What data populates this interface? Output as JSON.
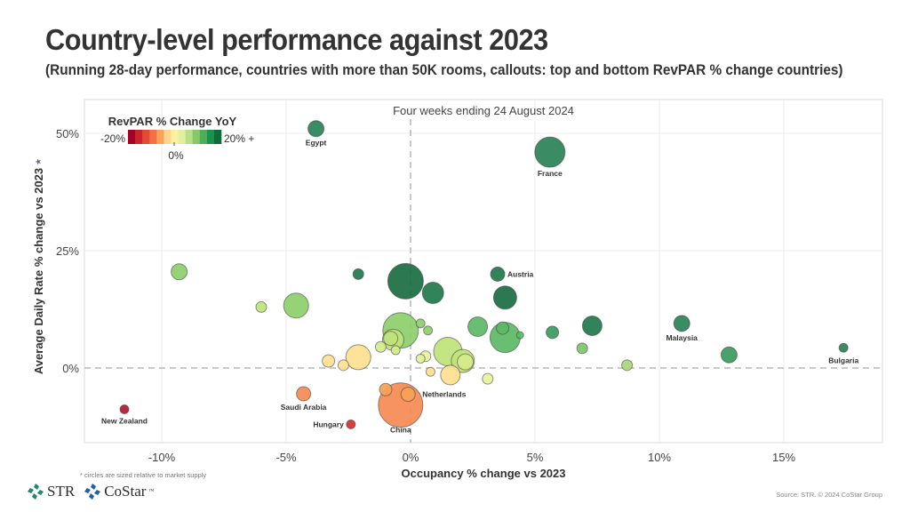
{
  "header": {
    "title": "Country-level performance against 2023",
    "subtitle": "(Running 28-day performance, countries with more than 50K rooms, callouts: top and bottom RevPAR % change countries)"
  },
  "footer": {
    "footnote": "* circles are sized relative to market supply",
    "source": "Source: STR. © 2024 CoStar Group",
    "logos": [
      {
        "name": "STR",
        "color": "#1f8a6e"
      },
      {
        "name": "CoStar",
        "color": "#1f5fa8"
      }
    ]
  },
  "chart_data": {
    "type": "scatter",
    "title": "Four weeks ending 24 August 2024",
    "xlabel": "Occupancy % change vs 2023",
    "ylabel": "Average Daily Rate % change vs 2023",
    "ylabel_marker": "★",
    "xlim": [
      -13.5,
      18.6
    ],
    "ylim": [
      -16,
      57
    ],
    "x_ticks": [
      {
        "value": -10,
        "label": "-10%"
      },
      {
        "value": -5,
        "label": "-5%"
      },
      {
        "value": 0,
        "label": "0%"
      },
      {
        "value": 5,
        "label": "5%"
      },
      {
        "value": 10,
        "label": "10%"
      },
      {
        "value": 15,
        "label": "15%"
      }
    ],
    "y_ticks": [
      {
        "value": 0,
        "label": "0%"
      },
      {
        "value": 25,
        "label": "25%"
      },
      {
        "value": 50,
        "label": "50%"
      }
    ],
    "grid": true,
    "reference_lines": {
      "x": 0,
      "y": 0,
      "style": "dashed"
    },
    "size_encoding": "market supply (relative)",
    "color_encoding": {
      "title": "RevPAR % Change YoY",
      "min_label": "-20%",
      "mid_label": "0%",
      "max_label": "20% +",
      "range": [
        -20,
        20
      ],
      "legend_position": "top-left",
      "colors": [
        "#a50026",
        "#c9232b",
        "#e34a33",
        "#f46d43",
        "#f9a35c",
        "#fdd590",
        "#fef0a0",
        "#e0f0a0",
        "#b7df8a",
        "#86c86a",
        "#4fae5e",
        "#1d9150",
        "#0f6b38"
      ]
    },
    "points": [
      {
        "label": "Egypt",
        "x": -3.8,
        "y": 51.0,
        "size": 9,
        "color": "#2a8257"
      },
      {
        "label": "France",
        "x": 5.6,
        "y": 46.0,
        "size": 17,
        "color": "#2a8257"
      },
      {
        "label": "Austria",
        "x": 3.5,
        "y": 20.0,
        "size": 8,
        "color": "#1f7a4b"
      },
      {
        "label": "",
        "x": -9.3,
        "y": 20.5,
        "size": 9,
        "color": "#8ccf6a"
      },
      {
        "label": "",
        "x": -2.1,
        "y": 20.0,
        "size": 6,
        "color": "#1f7a4b"
      },
      {
        "label": "",
        "x": -0.2,
        "y": 18.5,
        "size": 20,
        "color": "#1a6e42"
      },
      {
        "label": "",
        "x": 0.9,
        "y": 16.0,
        "size": 12,
        "color": "#1f7a4b"
      },
      {
        "label": "",
        "x": 3.8,
        "y": 15.0,
        "size": 13,
        "color": "#1a6e42"
      },
      {
        "label": "",
        "x": -6.0,
        "y": 13.0,
        "size": 6,
        "color": "#bfe37a"
      },
      {
        "label": "",
        "x": -4.6,
        "y": 13.3,
        "size": 14,
        "color": "#8ccf6a"
      },
      {
        "label": "",
        "x": -0.4,
        "y": 8.0,
        "size": 20,
        "color": "#8ccf6a"
      },
      {
        "label": "",
        "x": 0.4,
        "y": 9.5,
        "size": 5,
        "color": "#8ccf6a"
      },
      {
        "label": "",
        "x": 0.7,
        "y": 8.0,
        "size": 5,
        "color": "#8ccf6a"
      },
      {
        "label": "",
        "x": -0.7,
        "y": 6.0,
        "size": 12,
        "color": "#bfe37a"
      },
      {
        "label": "",
        "x": -0.8,
        "y": 6.3,
        "size": 8,
        "color": "#bfe37a"
      },
      {
        "label": "",
        "x": -1.2,
        "y": 4.5,
        "size": 6,
        "color": "#d6ec8c"
      },
      {
        "label": "",
        "x": -0.6,
        "y": 3.8,
        "size": 5,
        "color": "#d6ec8c"
      },
      {
        "label": "",
        "x": 2.7,
        "y": 8.8,
        "size": 11,
        "color": "#5db866"
      },
      {
        "label": "",
        "x": 3.8,
        "y": 6.5,
        "size": 17,
        "color": "#5db866"
      },
      {
        "label": "",
        "x": 3.7,
        "y": 8.5,
        "size": 7,
        "color": "#5db866"
      },
      {
        "label": "",
        "x": 4.4,
        "y": 7.0,
        "size": 4,
        "color": "#5db866"
      },
      {
        "label": "",
        "x": 1.5,
        "y": 3.5,
        "size": 16,
        "color": "#bfe37a"
      },
      {
        "label": "",
        "x": 2.1,
        "y": 1.5,
        "size": 13,
        "color": "#bfe37a"
      },
      {
        "label": "",
        "x": 2.2,
        "y": 1.3,
        "size": 9,
        "color": "#d6ec8c"
      },
      {
        "label": "",
        "x": 0.6,
        "y": 2.5,
        "size": 6,
        "color": "#e6f29c"
      },
      {
        "label": "",
        "x": 0.4,
        "y": 2.0,
        "size": 5,
        "color": "#e6f29c"
      },
      {
        "label": "",
        "x": 0.8,
        "y": -0.8,
        "size": 5,
        "color": "#fde08e"
      },
      {
        "label": "",
        "x": 1.6,
        "y": -1.5,
        "size": 11,
        "color": "#fde08e"
      },
      {
        "label": "",
        "x": 3.1,
        "y": -2.3,
        "size": 6,
        "color": "#e6f29c"
      },
      {
        "label": "",
        "x": -2.1,
        "y": 2.3,
        "size": 14,
        "color": "#fde08e"
      },
      {
        "label": "",
        "x": -3.3,
        "y": 1.5,
        "size": 7,
        "color": "#fde08e"
      },
      {
        "label": "",
        "x": -2.7,
        "y": 0.6,
        "size": 6,
        "color": "#fde08e"
      },
      {
        "label": "",
        "x": 5.7,
        "y": 7.6,
        "size": 7,
        "color": "#3a9a5c"
      },
      {
        "label": "",
        "x": 7.3,
        "y": 9.0,
        "size": 11,
        "color": "#1f7a4b"
      },
      {
        "label": "",
        "x": 6.9,
        "y": 4.2,
        "size": 6,
        "color": "#7cc46a"
      },
      {
        "label": "",
        "x": 8.7,
        "y": 0.6,
        "size": 6,
        "color": "#a7d77a"
      },
      {
        "label": "Malaysia",
        "x": 10.9,
        "y": 9.5,
        "size": 9,
        "color": "#2a8257"
      },
      {
        "label": "",
        "x": 12.8,
        "y": 2.8,
        "size": 9,
        "color": "#3a9a5c"
      },
      {
        "label": "Bulgaria",
        "x": 17.4,
        "y": 4.3,
        "size": 5,
        "color": "#2a8257"
      },
      {
        "label": "Netherlands",
        "x": -0.1,
        "y": -5.6,
        "size": 8,
        "color": "#f7a158"
      },
      {
        "label": "",
        "x": -1.0,
        "y": -4.6,
        "size": 7,
        "color": "#f7a158"
      },
      {
        "label": "China",
        "x": -0.4,
        "y": -7.9,
        "size": 25,
        "color": "#f58a52"
      },
      {
        "label": "Saudi Arabia",
        "x": -4.3,
        "y": -5.5,
        "size": 8,
        "color": "#f58a52"
      },
      {
        "label": "Hungary",
        "x": -2.4,
        "y": -12.0,
        "size": 5,
        "color": "#d73027"
      },
      {
        "label": "New Zealand",
        "x": -11.5,
        "y": -8.8,
        "size": 5,
        "color": "#b2182b"
      }
    ]
  }
}
